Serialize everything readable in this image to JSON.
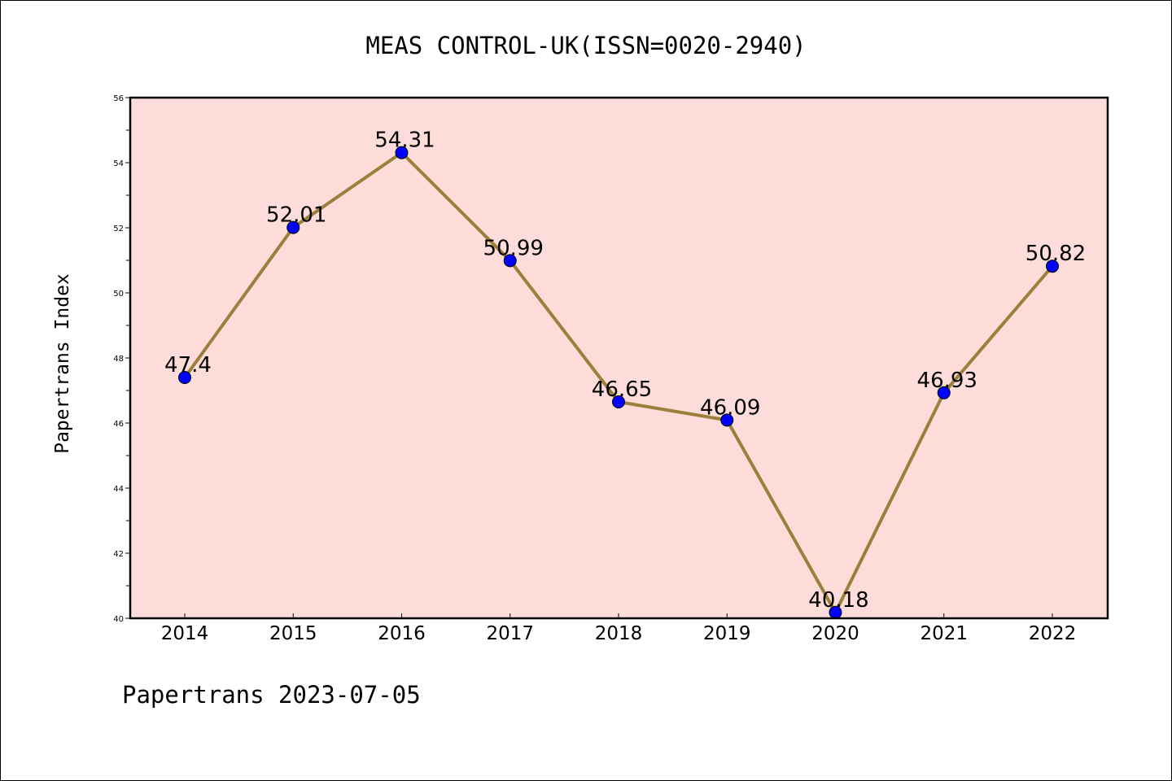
{
  "chart_data": {
    "type": "line",
    "title": "MEAS CONTROL-UK(ISSN=0020-2940)",
    "xlabel": "",
    "ylabel": "Papertrans Index",
    "footer": "Papertrans 2023-07-05",
    "categories": [
      "2014",
      "2015",
      "2016",
      "2017",
      "2018",
      "2019",
      "2020",
      "2021",
      "2022"
    ],
    "series": [
      {
        "values": [
          47.4,
          52.01,
          54.31,
          50.99,
          46.65,
          46.09,
          40.18,
          46.93,
          50.82
        ],
        "labels": [
          "47.4",
          "52.01",
          "54.31",
          "50.99",
          "46.65",
          "46.09",
          "40.18",
          "46.93",
          "50.82"
        ]
      }
    ],
    "ylim": [
      40,
      56
    ],
    "yticks": [
      40,
      42,
      44,
      46,
      48,
      50,
      52,
      54,
      56
    ],
    "grid": false,
    "legend": "none",
    "colors": {
      "plot_background": "#fddcd9",
      "line": "#9b7f3a",
      "marker": "#0000ff",
      "axes": "#000000"
    }
  }
}
